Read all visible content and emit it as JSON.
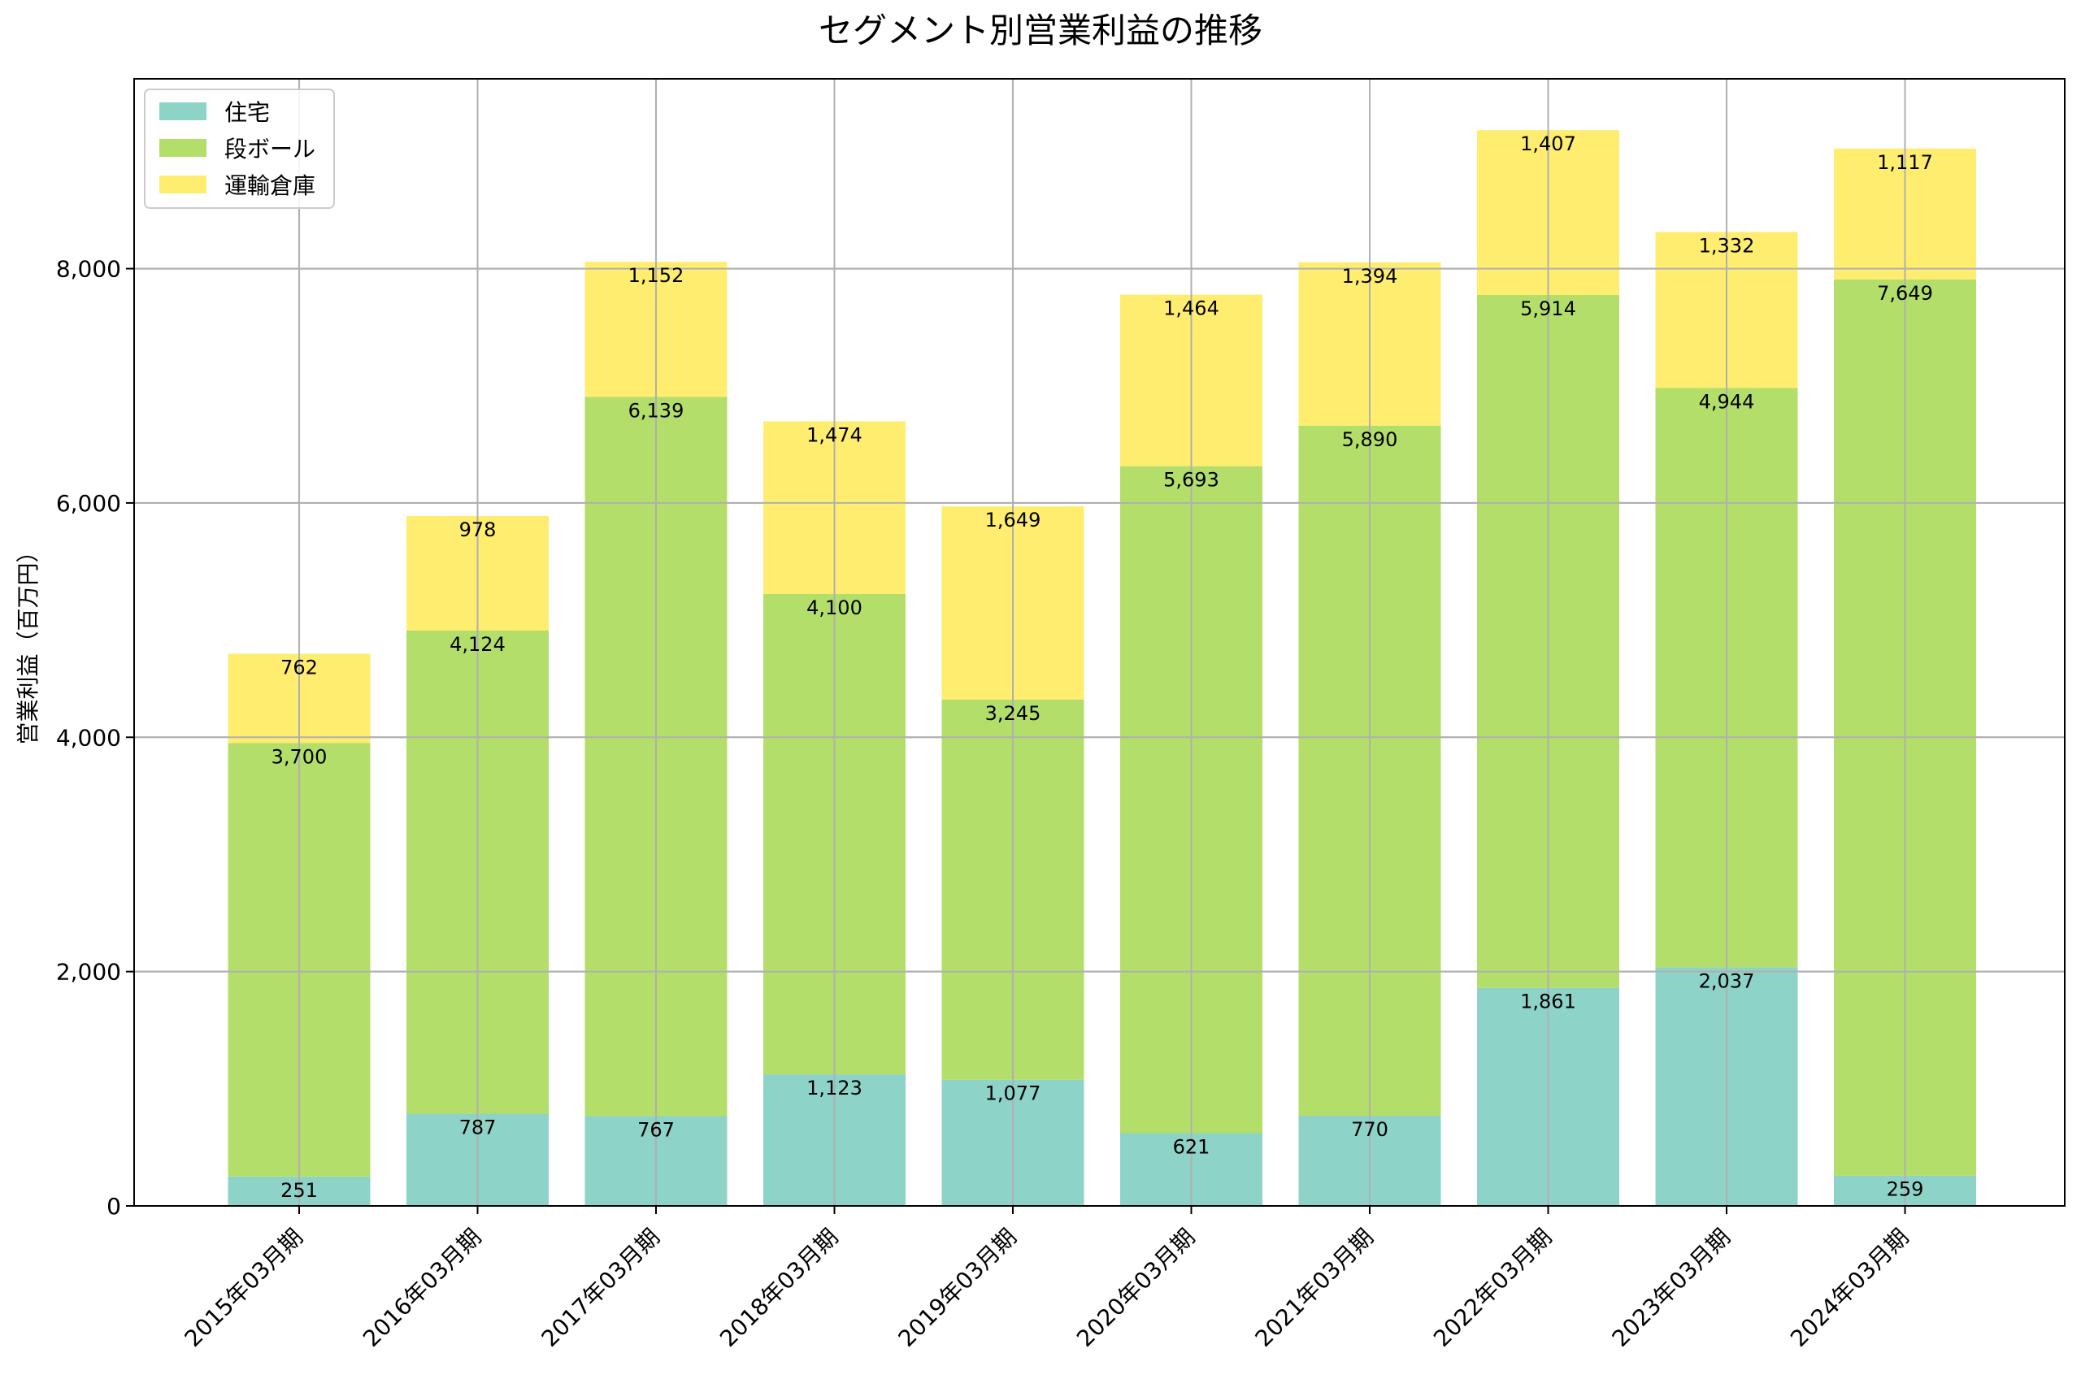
{
  "chart_data": {
    "type": "bar",
    "stacked": true,
    "title": "セグメント別営業利益の推移",
    "xlabel": "",
    "ylabel": "営業利益（百万円）",
    "ylim": [
      0,
      9620
    ],
    "yticks": [
      0,
      2000,
      4000,
      6000,
      8000
    ],
    "ytick_labels": [
      "0",
      "2,000",
      "4,000",
      "6,000",
      "8,000"
    ],
    "grid": true,
    "legend_position": "upper-left",
    "categories": [
      "2015年03月期",
      "2016年03月期",
      "2017年03月期",
      "2018年03月期",
      "2019年03月期",
      "2020年03月期",
      "2021年03月期",
      "2022年03月期",
      "2023年03月期",
      "2024年03月期"
    ],
    "series": [
      {
        "name": "住宅",
        "color": "#8dd3c7",
        "values": [
          251,
          787,
          767,
          1123,
          1077,
          621,
          770,
          1861,
          2037,
          259
        ],
        "labels": [
          "251",
          "787",
          "767",
          "1,123",
          "1,077",
          "621",
          "770",
          "1,861",
          "2,037",
          "259"
        ]
      },
      {
        "name": "段ボール",
        "color": "#b3de69",
        "values": [
          3700,
          4124,
          6139,
          4100,
          3245,
          5693,
          5890,
          5914,
          4944,
          7649
        ],
        "labels": [
          "3,700",
          "4,124",
          "6,139",
          "4,100",
          "3,245",
          "5,693",
          "5,890",
          "5,914",
          "4,944",
          "7,649"
        ]
      },
      {
        "name": "運輸倉庫",
        "color": "#ffed6f",
        "values": [
          762,
          978,
          1152,
          1474,
          1649,
          1464,
          1394,
          1407,
          1332,
          1117
        ],
        "labels": [
          "762",
          "978",
          "1,152",
          "1,474",
          "1,649",
          "1,464",
          "1,394",
          "1,407",
          "1,332",
          "1,117"
        ]
      }
    ]
  }
}
